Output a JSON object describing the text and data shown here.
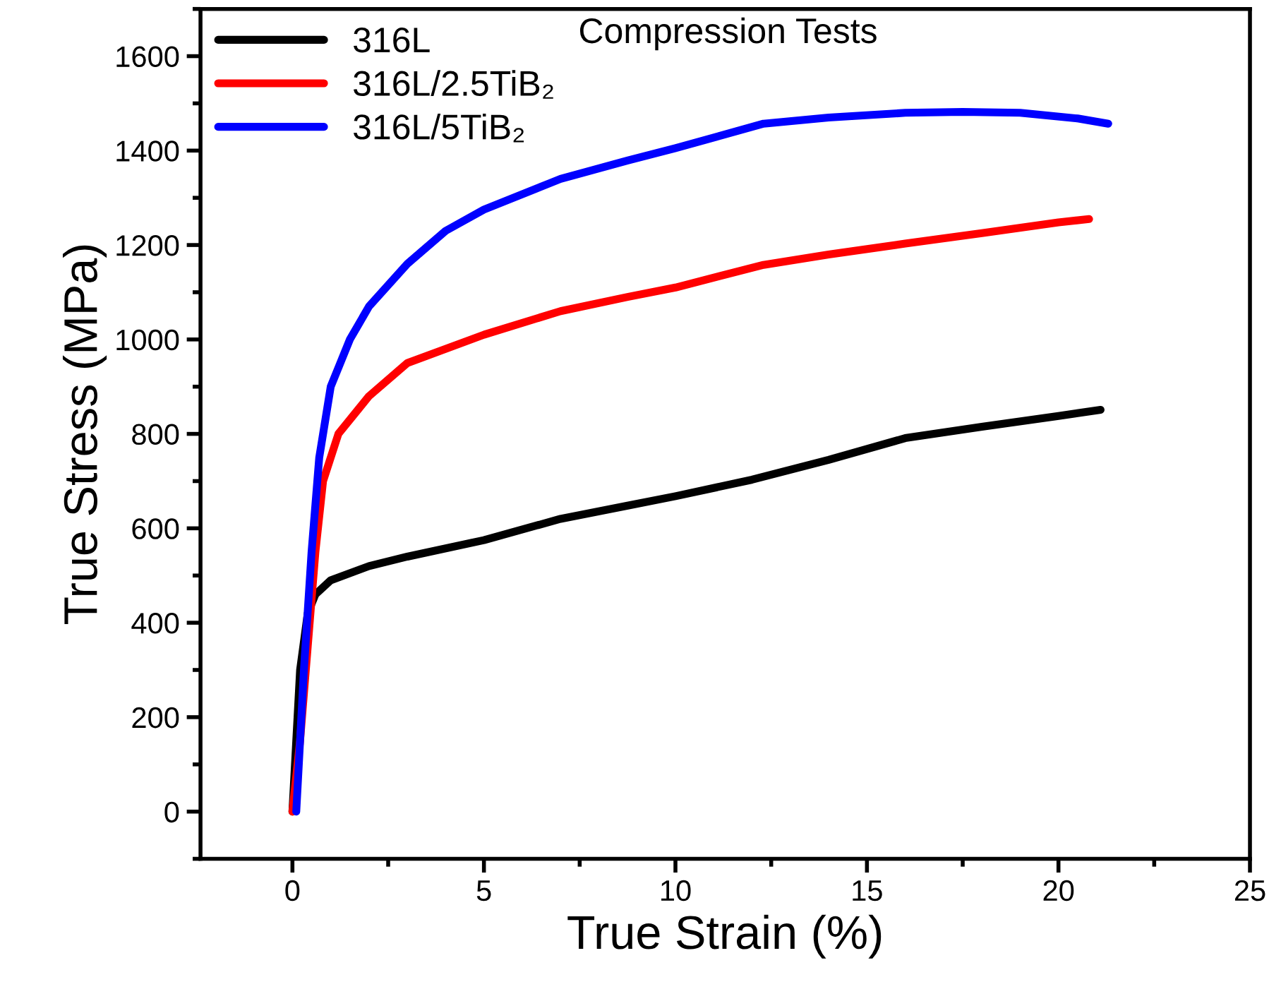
{
  "chart_data": {
    "type": "line",
    "xlabel": "True Strain (%)",
    "ylabel": "True Stress (MPa)",
    "annotations": [
      "Compression Tests"
    ],
    "xlim": [
      -2.4,
      25
    ],
    "xticks": [
      0,
      5,
      10,
      15,
      20,
      25
    ],
    "ylim": [
      -100,
      1700
    ],
    "yticks": [
      0,
      200,
      400,
      600,
      800,
      1000,
      1200,
      1400,
      1600
    ],
    "grid": false,
    "legend": "top left",
    "marker": "none",
    "line_style": "solid",
    "series": [
      {
        "name": "316L",
        "color": "#000000",
        "x": [
          0,
          0.1,
          0.2,
          0.4,
          0.6,
          1,
          2,
          3,
          5,
          7,
          8.75,
          10,
          12,
          14,
          16,
          18,
          20,
          21.1
        ],
        "values": [
          0,
          150,
          300,
          420,
          460,
          490,
          520,
          540,
          575,
          620,
          648,
          668,
          703,
          745,
          791,
          815,
          838,
          851
        ]
      },
      {
        "name": "316L/2.5TiB₂",
        "color": "#ff0000",
        "x": [
          0,
          0.2,
          0.4,
          0.6,
          0.8,
          1.2,
          2,
          3,
          5,
          7,
          8.75,
          10,
          12.3,
          14,
          16,
          18,
          20,
          20.8
        ],
        "values": [
          0,
          150,
          350,
          550,
          700,
          800,
          880,
          950,
          1010,
          1060,
          1090,
          1110,
          1158,
          1180,
          1203,
          1225,
          1248,
          1255
        ]
      },
      {
        "name": "316L/5TiB₂",
        "color": "#0000ff",
        "x": [
          0.1,
          0.3,
          0.5,
          0.7,
          1,
          1.5,
          2,
          3,
          4,
          5,
          7,
          8.75,
          10,
          12.3,
          14,
          16,
          17.5,
          19,
          20.5,
          21.3
        ],
        "values": [
          0,
          300,
          550,
          750,
          900,
          1000,
          1070,
          1160,
          1230,
          1275,
          1340,
          1379,
          1405,
          1457,
          1470,
          1480,
          1482,
          1480,
          1468,
          1457
        ]
      }
    ]
  }
}
